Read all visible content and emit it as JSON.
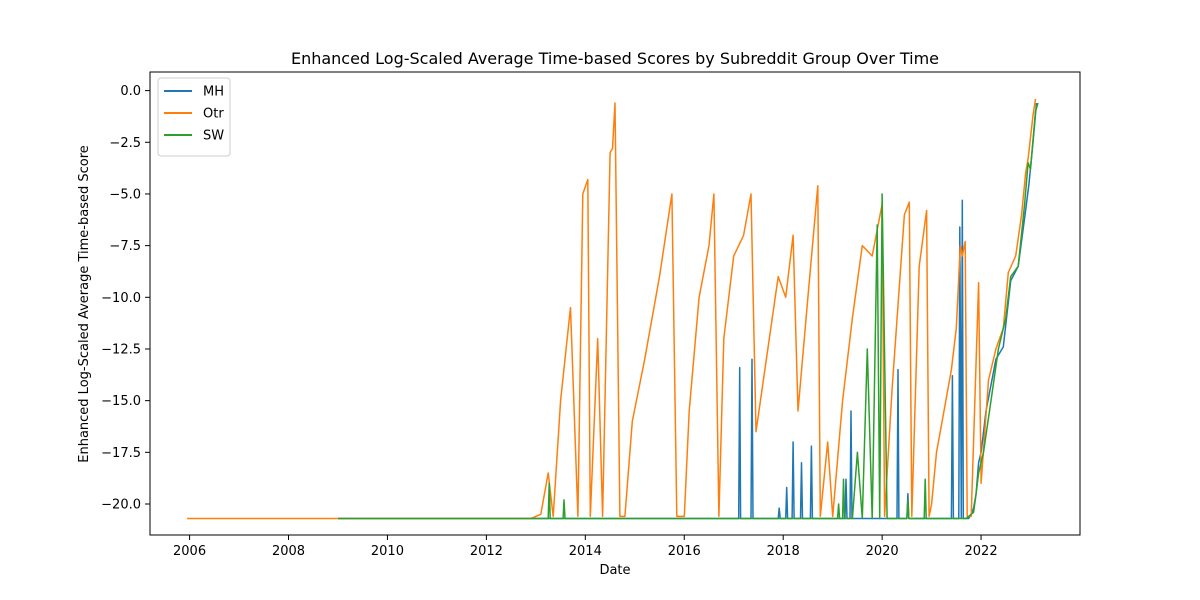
{
  "chart_data": {
    "type": "line",
    "title": "Enhanced Log-Scaled Average Time-based Scores by Subreddit Group Over Time",
    "xlabel": "Date",
    "ylabel": "Enhanced Log-Scaled Average Time-based Score",
    "xlim": [
      2005.2,
      2024.0
    ],
    "ylim": [
      -21.5,
      0.9
    ],
    "x_ticks": [
      2006,
      2008,
      2010,
      2012,
      2014,
      2016,
      2018,
      2020,
      2022
    ],
    "x_tick_labels": [
      "2006",
      "2008",
      "2010",
      "2012",
      "2014",
      "2016",
      "2018",
      "2020",
      "2022"
    ],
    "y_ticks": [
      0.0,
      -2.5,
      -5.0,
      -7.5,
      -10.0,
      -12.5,
      -15.0,
      -17.5,
      -20.0
    ],
    "y_tick_labels": [
      "0.0",
      "−2.5",
      "−5.0",
      "−7.5",
      "−10.0",
      "−12.5",
      "−15.0",
      "−17.5",
      "−20.0"
    ],
    "grid": false,
    "legend_position": "top-left",
    "series": [
      {
        "name": "MH",
        "color": "#1f77b4",
        "points": [
          [
            2009.0,
            -20.7
          ],
          [
            2017.1,
            -20.7
          ],
          [
            2017.12,
            -13.4
          ],
          [
            2017.14,
            -20.7
          ],
          [
            2017.35,
            -20.7
          ],
          [
            2017.37,
            -13.0
          ],
          [
            2017.39,
            -20.7
          ],
          [
            2017.9,
            -20.7
          ],
          [
            2017.92,
            -20.2
          ],
          [
            2017.94,
            -20.7
          ],
          [
            2018.05,
            -20.7
          ],
          [
            2018.07,
            -19.2
          ],
          [
            2018.09,
            -20.7
          ],
          [
            2018.18,
            -20.7
          ],
          [
            2018.2,
            -17.0
          ],
          [
            2018.22,
            -20.7
          ],
          [
            2018.35,
            -20.7
          ],
          [
            2018.37,
            -18.0
          ],
          [
            2018.39,
            -20.7
          ],
          [
            2018.55,
            -20.7
          ],
          [
            2018.57,
            -17.2
          ],
          [
            2018.59,
            -20.7
          ],
          [
            2019.25,
            -20.7
          ],
          [
            2019.27,
            -18.8
          ],
          [
            2019.29,
            -20.7
          ],
          [
            2019.35,
            -20.7
          ],
          [
            2019.37,
            -15.5
          ],
          [
            2019.39,
            -20.7
          ],
          [
            2020.3,
            -20.7
          ],
          [
            2020.32,
            -13.5
          ],
          [
            2020.34,
            -20.7
          ],
          [
            2020.5,
            -20.7
          ],
          [
            2020.52,
            -19.5
          ],
          [
            2020.54,
            -20.7
          ],
          [
            2021.4,
            -20.7
          ],
          [
            2021.42,
            -13.8
          ],
          [
            2021.44,
            -20.7
          ],
          [
            2021.55,
            -20.7
          ],
          [
            2021.57,
            -6.6
          ],
          [
            2021.6,
            -20.7
          ],
          [
            2021.62,
            -5.3
          ],
          [
            2021.64,
            -20.7
          ],
          [
            2021.75,
            -20.7
          ],
          [
            2021.8,
            -20.5
          ],
          [
            2021.85,
            -20.2
          ],
          [
            2021.9,
            -19.5
          ],
          [
            2021.95,
            -18.0
          ],
          [
            2022.0,
            -17.5
          ],
          [
            2022.1,
            -15.5
          ],
          [
            2022.3,
            -13.0
          ],
          [
            2022.45,
            -12.4
          ],
          [
            2022.6,
            -9.2
          ],
          [
            2022.75,
            -8.5
          ],
          [
            2022.9,
            -5.8
          ],
          [
            2022.97,
            -4.5
          ],
          [
            2023.05,
            -2.5
          ],
          [
            2023.12,
            -0.6
          ]
        ]
      },
      {
        "name": "Otr",
        "color": "#ff7f0e",
        "points": [
          [
            2005.95,
            -20.7
          ],
          [
            2012.9,
            -20.7
          ],
          [
            2013.1,
            -20.5
          ],
          [
            2013.25,
            -18.5
          ],
          [
            2013.35,
            -20.6
          ],
          [
            2013.5,
            -15.0
          ],
          [
            2013.7,
            -10.5
          ],
          [
            2013.85,
            -20.6
          ],
          [
            2013.95,
            -5.0
          ],
          [
            2014.05,
            -4.3
          ],
          [
            2014.1,
            -20.6
          ],
          [
            2014.25,
            -12.0
          ],
          [
            2014.35,
            -20.6
          ],
          [
            2014.5,
            -3.0
          ],
          [
            2014.55,
            -2.8
          ],
          [
            2014.6,
            -0.6
          ],
          [
            2014.7,
            -20.6
          ],
          [
            2014.8,
            -20.6
          ],
          [
            2014.95,
            -16.0
          ],
          [
            2015.2,
            -13.0
          ],
          [
            2015.5,
            -9.0
          ],
          [
            2015.75,
            -5.0
          ],
          [
            2015.85,
            -20.6
          ],
          [
            2016.0,
            -20.6
          ],
          [
            2016.1,
            -15.5
          ],
          [
            2016.3,
            -10.0
          ],
          [
            2016.5,
            -7.5
          ],
          [
            2016.6,
            -5.0
          ],
          [
            2016.7,
            -20.6
          ],
          [
            2016.8,
            -12.0
          ],
          [
            2017.0,
            -8.0
          ],
          [
            2017.2,
            -7.0
          ],
          [
            2017.35,
            -5.0
          ],
          [
            2017.45,
            -16.5
          ],
          [
            2017.6,
            -14.0
          ],
          [
            2017.9,
            -9.0
          ],
          [
            2018.05,
            -10.0
          ],
          [
            2018.2,
            -7.0
          ],
          [
            2018.3,
            -15.5
          ],
          [
            2018.5,
            -10.0
          ],
          [
            2018.7,
            -4.6
          ],
          [
            2018.75,
            -20.6
          ],
          [
            2018.9,
            -17.0
          ],
          [
            2019.0,
            -20.6
          ],
          [
            2019.2,
            -15.0
          ],
          [
            2019.4,
            -11.0
          ],
          [
            2019.6,
            -7.5
          ],
          [
            2019.8,
            -8.0
          ],
          [
            2020.0,
            -5.5
          ],
          [
            2020.05,
            -20.6
          ],
          [
            2020.2,
            -14.5
          ],
          [
            2020.45,
            -6.0
          ],
          [
            2020.55,
            -5.4
          ],
          [
            2020.6,
            -20.6
          ],
          [
            2020.75,
            -8.5
          ],
          [
            2020.9,
            -5.8
          ],
          [
            2020.95,
            -20.6
          ],
          [
            2021.0,
            -20.0
          ],
          [
            2021.1,
            -17.5
          ],
          [
            2021.25,
            -15.5
          ],
          [
            2021.4,
            -13.5
          ],
          [
            2021.5,
            -11.5
          ],
          [
            2021.58,
            -7.5
          ],
          [
            2021.62,
            -8.0
          ],
          [
            2021.68,
            -7.3
          ],
          [
            2021.72,
            -20.6
          ],
          [
            2021.8,
            -20.6
          ],
          [
            2021.95,
            -9.3
          ],
          [
            2022.0,
            -19.0
          ],
          [
            2022.15,
            -14.0
          ],
          [
            2022.3,
            -12.5
          ],
          [
            2022.45,
            -11.5
          ],
          [
            2022.55,
            -8.8
          ],
          [
            2022.7,
            -8.0
          ],
          [
            2022.82,
            -6.0
          ],
          [
            2022.9,
            -4.0
          ],
          [
            2022.95,
            -3.3
          ],
          [
            2023.05,
            -1.2
          ],
          [
            2023.1,
            -0.4
          ]
        ]
      },
      {
        "name": "SW",
        "color": "#2ca02c",
        "points": [
          [
            2009.0,
            -20.7
          ],
          [
            2013.25,
            -20.7
          ],
          [
            2013.27,
            -19.0
          ],
          [
            2013.29,
            -20.7
          ],
          [
            2013.55,
            -20.7
          ],
          [
            2013.57,
            -19.8
          ],
          [
            2013.59,
            -20.7
          ],
          [
            2019.1,
            -20.7
          ],
          [
            2019.12,
            -20.0
          ],
          [
            2019.14,
            -20.7
          ],
          [
            2019.2,
            -20.7
          ],
          [
            2019.22,
            -18.8
          ],
          [
            2019.24,
            -20.7
          ],
          [
            2019.4,
            -20.7
          ],
          [
            2019.5,
            -17.5
          ],
          [
            2019.6,
            -20.7
          ],
          [
            2019.7,
            -12.5
          ],
          [
            2019.8,
            -20.7
          ],
          [
            2019.9,
            -6.5
          ],
          [
            2019.95,
            -20.7
          ],
          [
            2020.0,
            -5.0
          ],
          [
            2020.1,
            -20.7
          ],
          [
            2020.2,
            -20.7
          ],
          [
            2020.5,
            -20.7
          ],
          [
            2020.52,
            -19.8
          ],
          [
            2020.54,
            -20.7
          ],
          [
            2020.85,
            -20.7
          ],
          [
            2020.87,
            -18.8
          ],
          [
            2020.89,
            -20.7
          ],
          [
            2021.7,
            -20.7
          ],
          [
            2021.85,
            -20.4
          ],
          [
            2021.9,
            -19.5
          ],
          [
            2021.95,
            -18.5
          ],
          [
            2022.05,
            -17.5
          ],
          [
            2022.2,
            -15.0
          ],
          [
            2022.35,
            -12.5
          ],
          [
            2022.5,
            -11.0
          ],
          [
            2022.6,
            -9.0
          ],
          [
            2022.75,
            -8.5
          ],
          [
            2022.88,
            -5.5
          ],
          [
            2022.95,
            -3.5
          ],
          [
            2023.0,
            -3.8
          ],
          [
            2023.1,
            -1.0
          ],
          [
            2023.15,
            -0.6
          ]
        ]
      }
    ]
  }
}
